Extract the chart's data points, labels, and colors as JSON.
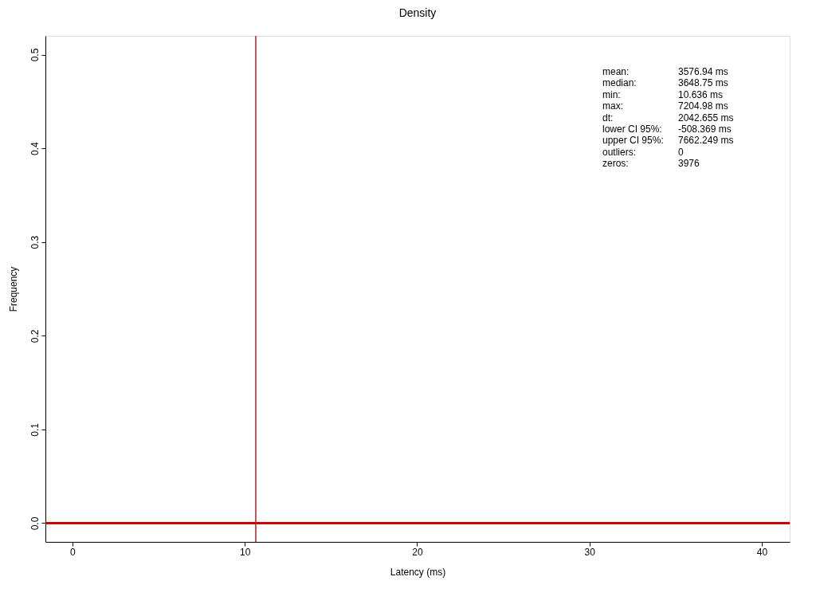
{
  "chart_data": {
    "type": "line",
    "title": "Density",
    "xlabel": "Latency (ms)",
    "ylabel": "Frequency",
    "series": [
      {
        "x": [
          -1.57,
          41.62
        ],
        "values": [
          0,
          0
        ],
        "color": "#cc0000"
      }
    ],
    "xlim": [
      -1.57,
      41.62
    ],
    "xticks": [
      0,
      10,
      20,
      30,
      40
    ],
    "ylim": [
      -0.02,
      0.52
    ],
    "yticks": [
      {
        "value": 0,
        "label": "0.0"
      },
      {
        "value": 0.1,
        "label": "0.1"
      },
      {
        "value": 0.2,
        "label": "0.2"
      },
      {
        "value": 0.3,
        "label": "0.3"
      },
      {
        "value": 0.4,
        "label": "0.4"
      },
      {
        "value": 0.5,
        "label": "0.5"
      }
    ],
    "ref_lines": [
      {
        "axis": "x",
        "value": 10.636,
        "color": "#b22222"
      }
    ],
    "grid": false,
    "annotations": [
      "mean:",
      "3576.94 ms",
      "median:",
      "3648.75 ms",
      "min:",
      "10.636 ms",
      "max:",
      "7204.98 ms",
      "dt:",
      "2042.655 ms",
      "lower CI 95%:",
      "-508.369 ms",
      "upper CI 95%:",
      "7662.249 ms",
      "outliers:",
      "0",
      "zeros:",
      "3976"
    ]
  }
}
